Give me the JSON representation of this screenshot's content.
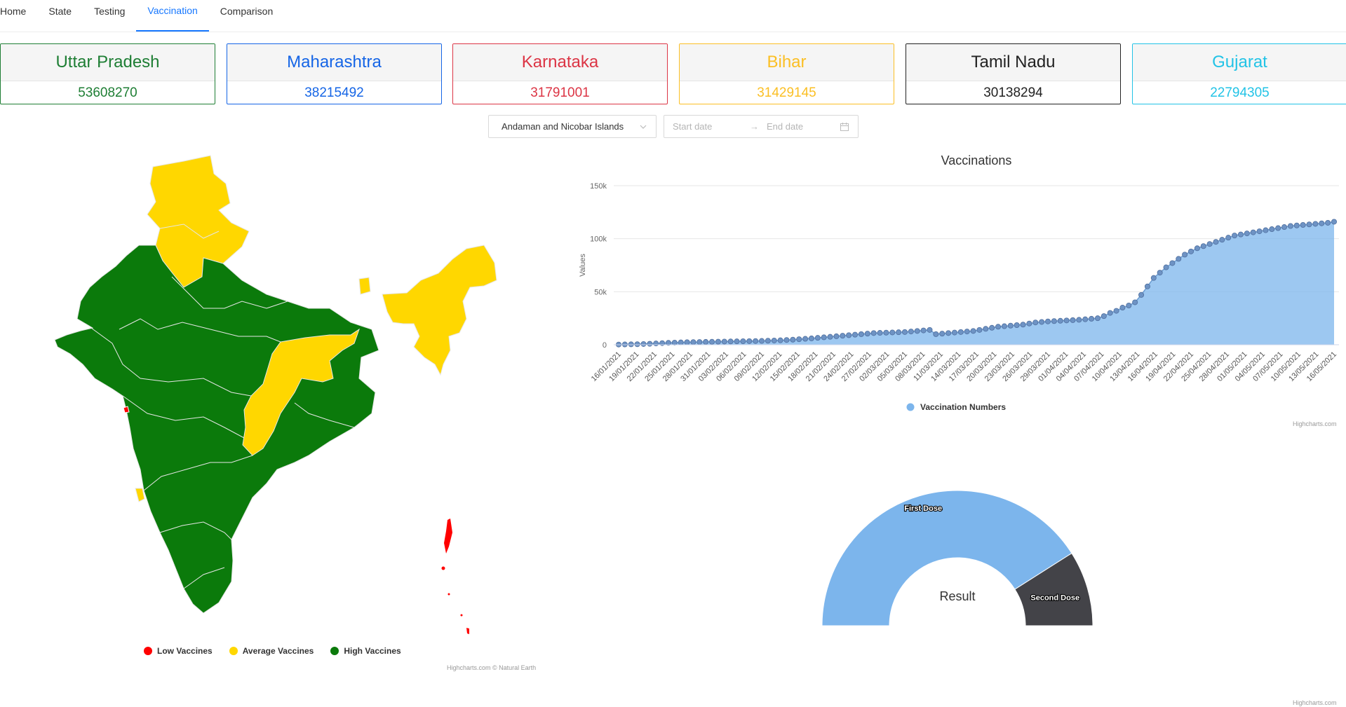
{
  "nav": {
    "items": [
      "Home",
      "State",
      "Testing",
      "Vaccination",
      "Comparison"
    ],
    "active_index": 3
  },
  "cards": [
    {
      "name": "Uttar Pradesh",
      "value": "53608270",
      "color": "#1e7e34"
    },
    {
      "name": "Maharashtra",
      "value": "38215492",
      "color": "#1565e6"
    },
    {
      "name": "Karnataka",
      "value": "31791001",
      "color": "#dc3545"
    },
    {
      "name": "Bihar",
      "value": "31429145",
      "color": "#fbbf24"
    },
    {
      "name": "Tamil Nadu",
      "value": "30138294",
      "color": "#222222"
    },
    {
      "name": "Gujarat",
      "value": "22794305",
      "color": "#22c3e6"
    }
  ],
  "filters": {
    "state_select": "Andaman and Nicobar Islands",
    "start_placeholder": "Start date",
    "end_placeholder": "End date"
  },
  "map": {
    "legend": [
      {
        "label": "Low Vaccines",
        "color": "#ff0000"
      },
      {
        "label": "Average Vaccines",
        "color": "#ffd700"
      },
      {
        "label": "High Vaccines",
        "color": "#0b7a0b"
      }
    ],
    "credit": "Highcharts.com © Natural Earth"
  },
  "chart_data": [
    {
      "type": "area",
      "title": "Vaccinations",
      "ylabel": "Values",
      "xlabel": "",
      "ylim": [
        0,
        150000
      ],
      "yticks": [
        "0",
        "50k",
        "100k",
        "150k"
      ],
      "x_tick_labels": [
        "16/01/2021",
        "19/01/2021",
        "22/01/2021",
        "25/01/2021",
        "28/01/2021",
        "31/01/2021",
        "03/02/2021",
        "06/02/2021",
        "09/02/2021",
        "12/02/2021",
        "15/02/2021",
        "18/02/2021",
        "21/02/2021",
        "24/02/2021",
        "27/02/2021",
        "02/03/2021",
        "05/03/2021",
        "08/03/2021",
        "11/03/2021",
        "14/03/2021",
        "17/03/2021",
        "20/03/2021",
        "23/03/2021",
        "26/03/2021",
        "29/03/2021",
        "01/04/2021",
        "04/04/2021",
        "07/04/2021",
        "10/04/2021",
        "13/04/2021",
        "16/04/2021",
        "19/04/2021",
        "22/04/2021",
        "25/04/2021",
        "28/04/2021",
        "01/05/2021",
        "04/05/2021",
        "07/05/2021",
        "10/05/2021",
        "13/05/2021",
        "16/05/2021"
      ],
      "series": [
        {
          "name": "Vaccination Numbers",
          "color": "#7cb5ec",
          "values": [
            200,
            300,
            400,
            500,
            700,
            900,
            1200,
            1500,
            1800,
            2000,
            2200,
            2400,
            2500,
            2600,
            2700,
            2800,
            2900,
            3000,
            3100,
            3200,
            3300,
            3400,
            3500,
            3600,
            3800,
            4000,
            4200,
            4500,
            4800,
            5200,
            5600,
            6000,
            6500,
            7000,
            7500,
            8000,
            8500,
            9000,
            9500,
            10000,
            10500,
            11000,
            11200,
            11400,
            11600,
            11800,
            12000,
            12500,
            13000,
            13500,
            14000,
            10000,
            10500,
            11000,
            11500,
            12000,
            12500,
            13000,
            14000,
            15000,
            16000,
            17000,
            17500,
            18000,
            18500,
            19000,
            20000,
            21000,
            21500,
            22000,
            22300,
            22600,
            22900,
            23200,
            23500,
            24000,
            24500,
            25000,
            27000,
            30000,
            32000,
            35000,
            37000,
            40000,
            47000,
            55000,
            63000,
            68000,
            73000,
            77000,
            81000,
            85000,
            88000,
            91000,
            93000,
            95000,
            97000,
            99000,
            101000,
            103000,
            104000,
            105000,
            106000,
            107000,
            108000,
            109000,
            110000,
            111000,
            112000,
            112500,
            113000,
            113500,
            114000,
            114500,
            115000,
            116000
          ]
        }
      ],
      "credit": "Highcharts.com"
    },
    {
      "type": "pie",
      "title": "Result",
      "categories": [
        "First Dose",
        "Second Dose"
      ],
      "values": [
        82,
        18
      ],
      "colors": [
        "#7cb5ec",
        "#434348"
      ],
      "credit": "Highcharts.com"
    }
  ]
}
